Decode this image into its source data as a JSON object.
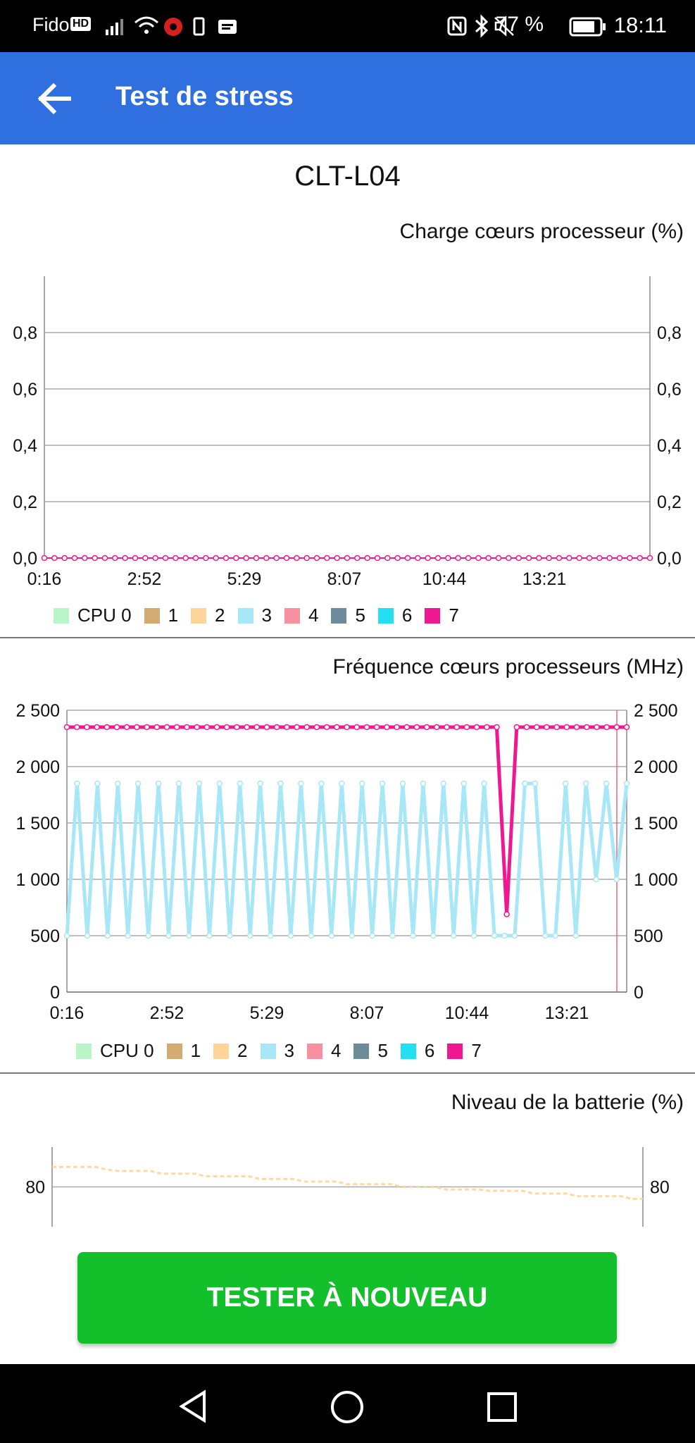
{
  "status_bar": {
    "carrier": "Fido",
    "hd": "HD",
    "battery": "77 %",
    "time": "18:11"
  },
  "app_bar": {
    "title": "Test de stress",
    "back_icon": "arrow-left-icon"
  },
  "device_name": "CLT-L04",
  "button": {
    "label": "TESTER À NOUVEAU"
  },
  "legend_colors": [
    "#b9f5c6",
    "#d2aa72",
    "#fdd59a",
    "#a7e7f7",
    "#f7919f",
    "#6e8b9b",
    "#22e0f2",
    "#f01890"
  ],
  "chart_data": [
    {
      "type": "line",
      "title": "Charge cœurs processeur (%)",
      "legend": [
        "CPU 0",
        "1",
        "2",
        "3",
        "4",
        "5",
        "6",
        "7"
      ],
      "x_ticks": [
        "0:16",
        "2:52",
        "5:29",
        "8:07",
        "10:44",
        "13:21"
      ],
      "y_ticks": [
        "0,0",
        "0,2",
        "0,4",
        "0,6",
        "0,8"
      ],
      "ylim": [
        0,
        1
      ],
      "series": [
        {
          "name": "7",
          "values": [
            0,
            0,
            0,
            0,
            0,
            0,
            0,
            0,
            0,
            0,
            0,
            0,
            0,
            0,
            0,
            0,
            0,
            0,
            0,
            0,
            0,
            0,
            0,
            0,
            0,
            0,
            0,
            0,
            0,
            0,
            0,
            0,
            0,
            0,
            0,
            0,
            0,
            0,
            0,
            0,
            0,
            0,
            0,
            0,
            0,
            0,
            0,
            0,
            0,
            0,
            0,
            0,
            0,
            0,
            0,
            0,
            0,
            0,
            0,
            0,
            0
          ]
        }
      ]
    },
    {
      "type": "line",
      "title": "Fréquence cœurs processeurs (MHz)",
      "legend": [
        "CPU 0",
        "1",
        "2",
        "3",
        "4",
        "5",
        "6",
        "7"
      ],
      "x_ticks": [
        "0:16",
        "2:52",
        "5:29",
        "8:07",
        "10:44",
        "13:21"
      ],
      "y_ticks": [
        "0",
        "500",
        "1 000",
        "1 500",
        "2 000",
        "2 500"
      ],
      "ylim": [
        0,
        2500
      ],
      "series": [
        {
          "name": "7",
          "values": [
            2350,
            2350,
            2350,
            2350,
            2350,
            2350,
            2350,
            2350,
            2350,
            2350,
            2350,
            2350,
            2350,
            2350,
            2350,
            2350,
            2350,
            2350,
            2350,
            2350,
            2350,
            2350,
            2350,
            2350,
            2350,
            2350,
            2350,
            2350,
            2350,
            2350,
            2350,
            2350,
            2350,
            2350,
            2350,
            2350,
            2350,
            2350,
            2350,
            2350,
            2350,
            2350,
            2350,
            2350,
            690,
            2350,
            2350,
            2350,
            2350,
            2350,
            2350,
            2350,
            2350,
            2350,
            2350,
            2350,
            2350
          ]
        },
        {
          "name": "3",
          "values": [
            500,
            1850,
            500,
            1850,
            500,
            1850,
            500,
            1850,
            500,
            1850,
            500,
            1850,
            500,
            1850,
            500,
            1850,
            500,
            1850,
            500,
            1850,
            500,
            1850,
            500,
            1850,
            500,
            1850,
            500,
            1850,
            500,
            1850,
            500,
            1850,
            500,
            1850,
            500,
            1850,
            500,
            1850,
            500,
            1850,
            500,
            1850,
            500,
            500,
            500,
            1850,
            1850,
            500,
            500,
            1850,
            500,
            1850,
            1000,
            1850,
            1000,
            1850
          ]
        }
      ]
    },
    {
      "type": "line",
      "title": "Niveau de la batterie (%)",
      "y_ticks": [
        "80"
      ],
      "ylim": [
        77,
        83
      ],
      "series": [
        {
          "name": "batterie",
          "values": [
            81.5,
            81.5,
            81.5,
            81.5,
            81.5,
            81.3,
            81.2,
            81.2,
            81.2,
            81.2,
            81.0,
            81.0,
            81.0,
            81.0,
            80.8,
            80.8,
            80.8,
            80.8,
            80.8,
            80.6,
            80.6,
            80.6,
            80.6,
            80.4,
            80.4,
            80.4,
            80.4,
            80.2,
            80.2,
            80.2,
            80.2,
            80.2,
            80.0,
            80.0,
            80.0,
            80.0,
            79.8,
            79.8,
            79.8,
            79.8,
            79.7,
            79.7,
            79.7,
            79.7,
            79.5,
            79.5,
            79.5,
            79.5,
            79.3,
            79.3,
            79.3,
            79.3,
            79.3,
            79.1,
            79.1
          ]
        }
      ]
    }
  ]
}
